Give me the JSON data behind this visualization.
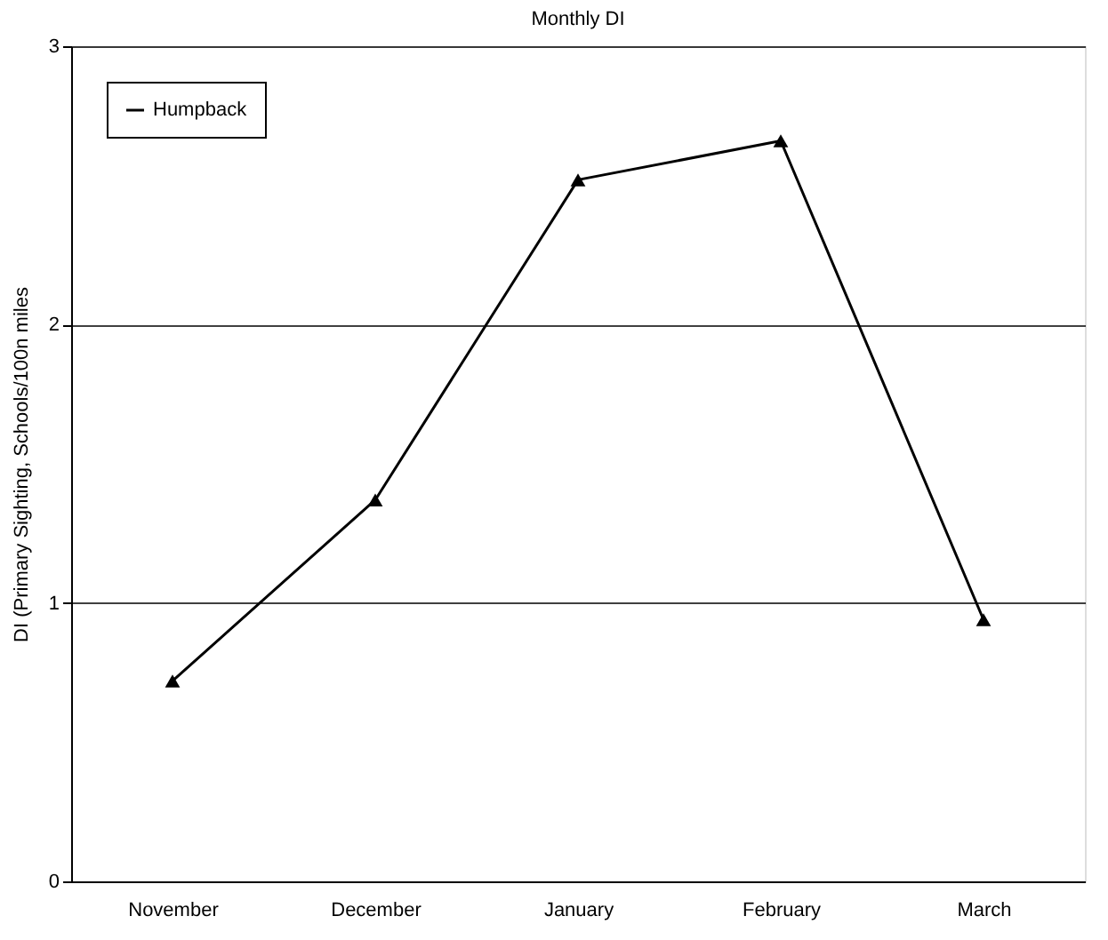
{
  "chart_data": {
    "type": "line",
    "title": "Monthly DI",
    "ylabel": "DI (Primary Sighting, Schools/100n miles",
    "categories": [
      "November",
      "December",
      "January",
      "February",
      "March"
    ],
    "series": [
      {
        "name": "Humpback",
        "color": "#000000",
        "values": [
          0.72,
          1.37,
          2.52,
          2.66,
          0.94
        ]
      }
    ],
    "ylim": [
      0,
      3
    ],
    "yticks": [
      0,
      1,
      2,
      3
    ],
    "grid": "y",
    "legend": "top left",
    "marker": "triangle",
    "line_style": "solid"
  }
}
